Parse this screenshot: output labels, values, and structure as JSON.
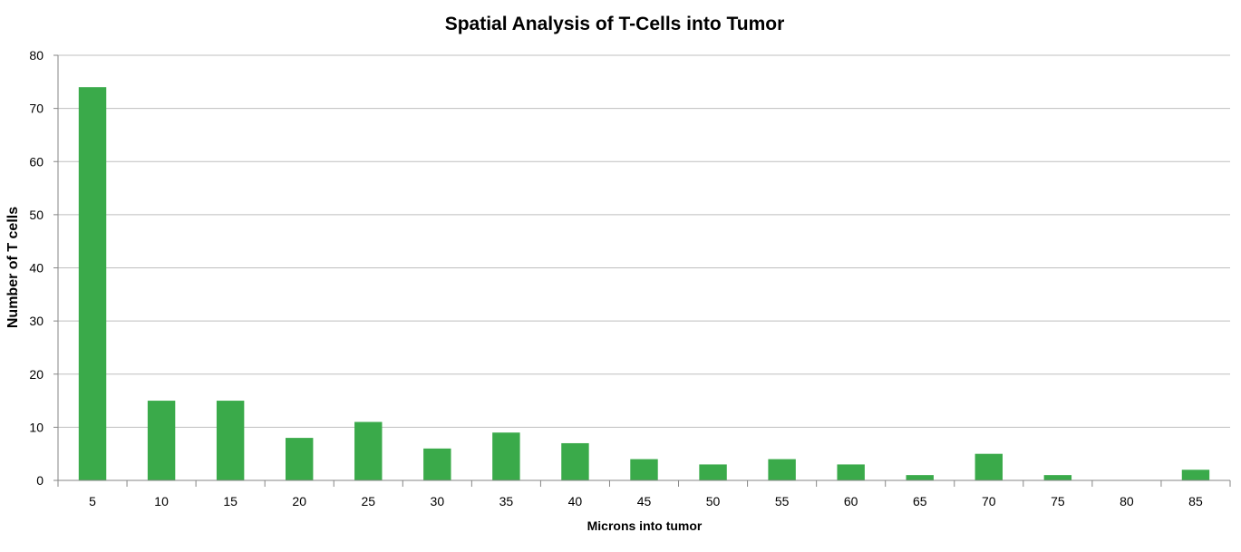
{
  "colors": {
    "bar": "#3aaa4a",
    "gridline": "#bfbfbf",
    "axis": "#868686",
    "background": "#ffffff"
  },
  "chart_data": {
    "type": "bar",
    "title": "Spatial Analysis of T-Cells into Tumor",
    "xlabel": "Microns into tumor",
    "ylabel": "Number of T cells",
    "categories": [
      "5",
      "10",
      "15",
      "20",
      "25",
      "30",
      "35",
      "40",
      "45",
      "50",
      "55",
      "60",
      "65",
      "70",
      "75",
      "80",
      "85"
    ],
    "values": [
      74,
      15,
      15,
      8,
      11,
      6,
      9,
      7,
      4,
      3,
      4,
      3,
      1,
      5,
      1,
      0,
      2
    ],
    "ylim": [
      0,
      80
    ],
    "yticks": [
      0,
      10,
      20,
      30,
      40,
      50,
      60,
      70,
      80
    ],
    "grid": true,
    "legend": "none"
  }
}
